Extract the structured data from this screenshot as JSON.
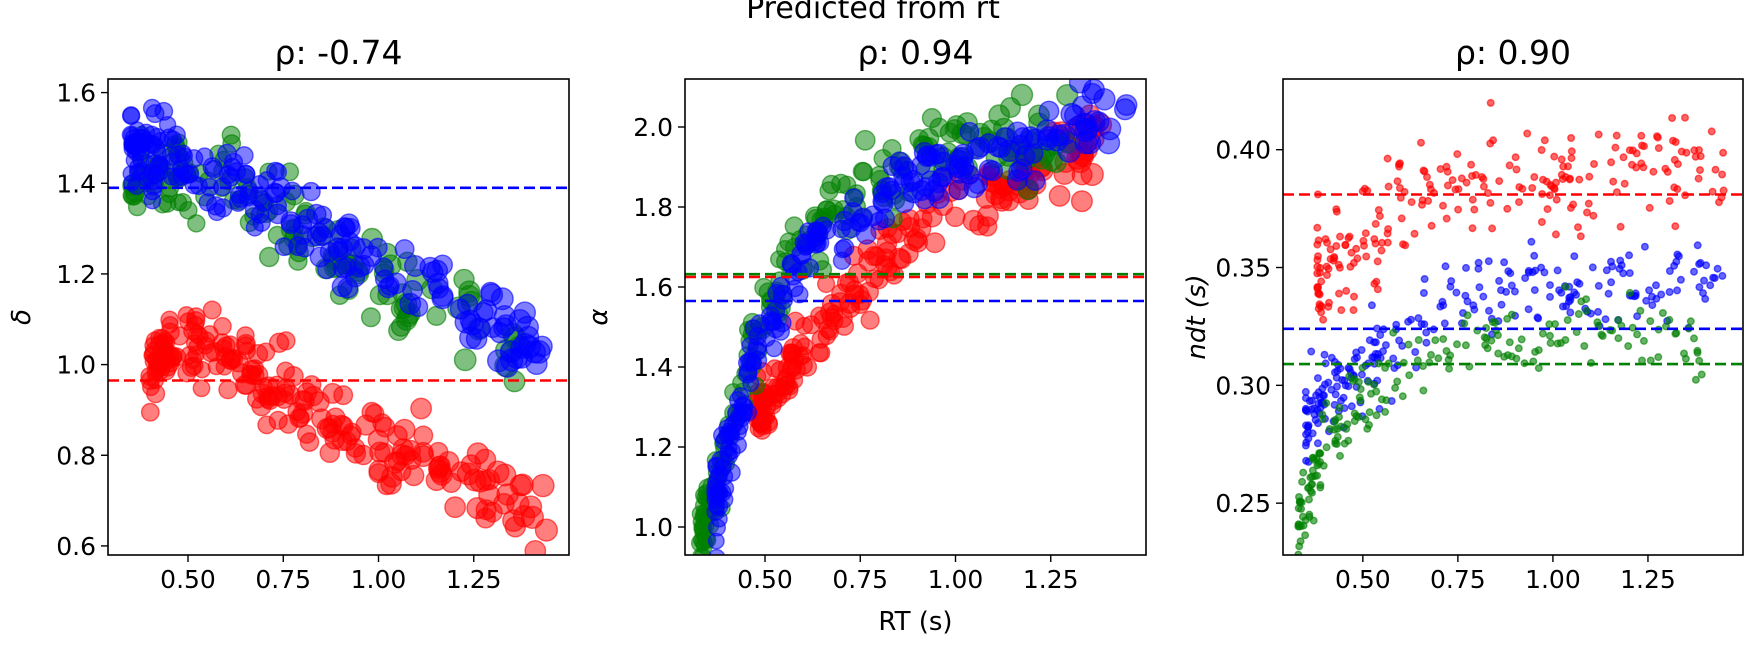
{
  "figure": {
    "suptitle": "Predicted from rt"
  },
  "chart_data": [
    {
      "type": "scatter",
      "title": "ρ: -0.74",
      "xlabel": "",
      "ylabel": "δ",
      "xlim": [
        0.29,
        1.5
      ],
      "ylim": [
        0.58,
        1.63
      ],
      "xticks": [
        0.5,
        0.75,
        1.0,
        1.25
      ],
      "xticklabels": [
        "0.50",
        "0.75",
        "1.00",
        "1.25"
      ],
      "yticks": [
        0.6,
        0.8,
        1.0,
        1.2,
        1.4,
        1.6
      ],
      "yticklabels": [
        "0.6",
        "0.8",
        "1.0",
        "1.2",
        "1.4",
        "1.6"
      ],
      "marker_size": "large",
      "hlines": [
        {
          "name": "blue",
          "color": "#0000ff",
          "y": 1.39
        },
        {
          "name": "red",
          "color": "#ff0000",
          "y": 0.965
        }
      ],
      "series": [
        {
          "name": "green",
          "color": "#008000",
          "trend": [
            [
              0.35,
              1.42
            ],
            [
              0.55,
              1.42
            ],
            [
              0.75,
              1.33
            ],
            [
              1.0,
              1.17
            ],
            [
              1.2,
              1.12
            ],
            [
              1.4,
              1.05
            ]
          ],
          "n": 140,
          "spread": 0.045
        },
        {
          "name": "blue",
          "color": "#0000ff",
          "trend": [
            [
              0.35,
              1.47
            ],
            [
              0.5,
              1.44
            ],
            [
              0.7,
              1.36
            ],
            [
              0.9,
              1.26
            ],
            [
              1.1,
              1.17
            ],
            [
              1.3,
              1.1
            ],
            [
              1.45,
              1.02
            ]
          ],
          "n": 200,
          "spread": 0.04
        },
        {
          "name": "red",
          "color": "#ff0000",
          "trend": [
            [
              0.4,
              0.99
            ],
            [
              0.5,
              1.06
            ],
            [
              0.6,
              1.01
            ],
            [
              0.75,
              0.93
            ],
            [
              0.95,
              0.84
            ],
            [
              1.15,
              0.77
            ],
            [
              1.3,
              0.7
            ],
            [
              1.45,
              0.64
            ]
          ],
          "n": 220,
          "spread": 0.045
        }
      ]
    },
    {
      "type": "scatter",
      "title": "ρ: 0.94",
      "xlabel": "RT (s)",
      "ylabel": "α",
      "xlim": [
        0.29,
        1.5
      ],
      "ylim": [
        0.93,
        2.12
      ],
      "xticks": [
        0.5,
        0.75,
        1.0,
        1.25
      ],
      "xticklabels": [
        "0.50",
        "0.75",
        "1.00",
        "1.25"
      ],
      "yticks": [
        1.0,
        1.2,
        1.4,
        1.6,
        1.8,
        2.0
      ],
      "yticklabels": [
        "1.0",
        "1.2",
        "1.4",
        "1.6",
        "1.8",
        "2.0"
      ],
      "marker_size": "large",
      "hlines": [
        {
          "name": "green",
          "color": "#008000",
          "y": 1.632
        },
        {
          "name": "red",
          "color": "#ff0000",
          "y": 1.625
        },
        {
          "name": "blue",
          "color": "#0000ff",
          "y": 1.565
        }
      ],
      "series": [
        {
          "name": "red",
          "color": "#ff0000",
          "trend": [
            [
              0.48,
              1.28
            ],
            [
              0.6,
              1.45
            ],
            [
              0.75,
              1.62
            ],
            [
              0.9,
              1.74
            ],
            [
              1.05,
              1.83
            ],
            [
              1.2,
              1.9
            ],
            [
              1.4,
              1.96
            ]
          ],
          "n": 200,
          "spread": 0.045
        },
        {
          "name": "green",
          "color": "#008000",
          "trend": [
            [
              0.33,
              0.98
            ],
            [
              0.38,
              1.12
            ],
            [
              0.45,
              1.4
            ],
            [
              0.55,
              1.65
            ],
            [
              0.7,
              1.82
            ],
            [
              0.85,
              1.9
            ],
            [
              1.05,
              1.98
            ],
            [
              1.3,
              1.96
            ]
          ],
          "n": 190,
          "spread": 0.05
        },
        {
          "name": "blue",
          "color": "#0000ff",
          "trend": [
            [
              0.37,
              1.06
            ],
            [
              0.42,
              1.25
            ],
            [
              0.5,
              1.5
            ],
            [
              0.6,
              1.65
            ],
            [
              0.72,
              1.78
            ],
            [
              0.9,
              1.87
            ],
            [
              1.1,
              1.92
            ],
            [
              1.45,
              2.05
            ]
          ],
          "n": 210,
          "spread": 0.045
        }
      ]
    },
    {
      "type": "scatter",
      "title": "ρ: 0.90",
      "xlabel": "",
      "ylabel": "ndt (s)",
      "xlim": [
        0.29,
        1.5
      ],
      "ylim": [
        0.228,
        0.43
      ],
      "xticks": [
        0.5,
        0.75,
        1.0,
        1.25
      ],
      "xticklabels": [
        "0.50",
        "0.75",
        "1.00",
        "1.25"
      ],
      "yticks": [
        0.25,
        0.3,
        0.35,
        0.4
      ],
      "yticklabels": [
        "0.25",
        "0.30",
        "0.35",
        "0.40"
      ],
      "marker_size": "small",
      "hlines": [
        {
          "name": "red",
          "color": "#ff0000",
          "y": 0.381
        },
        {
          "name": "blue",
          "color": "#0000ff",
          "y": 0.324
        },
        {
          "name": "green",
          "color": "#008000",
          "y": 0.309
        }
      ],
      "series": [
        {
          "name": "red",
          "color": "#ff0000",
          "trend": [
            [
              0.38,
              0.345
            ],
            [
              0.5,
              0.365
            ],
            [
              0.65,
              0.38
            ],
            [
              0.8,
              0.39
            ],
            [
              1.0,
              0.39
            ],
            [
              1.2,
              0.395
            ],
            [
              1.45,
              0.395
            ]
          ],
          "n": 230,
          "spread": 0.011
        },
        {
          "name": "blue",
          "color": "#0000ff",
          "trend": [
            [
              0.35,
              0.285
            ],
            [
              0.45,
              0.3
            ],
            [
              0.55,
              0.315
            ],
            [
              0.7,
              0.335
            ],
            [
              0.85,
              0.34
            ],
            [
              1.0,
              0.34
            ],
            [
              1.2,
              0.34
            ],
            [
              1.45,
              0.345
            ]
          ],
          "n": 250,
          "spread": 0.008
        },
        {
          "name": "green",
          "color": "#008000",
          "trend": [
            [
              0.33,
              0.24
            ],
            [
              0.4,
              0.275
            ],
            [
              0.5,
              0.295
            ],
            [
              0.6,
              0.31
            ],
            [
              0.75,
              0.32
            ],
            [
              0.9,
              0.32
            ],
            [
              1.1,
              0.325
            ],
            [
              1.4,
              0.315
            ]
          ],
          "n": 200,
          "spread": 0.008
        }
      ]
    }
  ]
}
